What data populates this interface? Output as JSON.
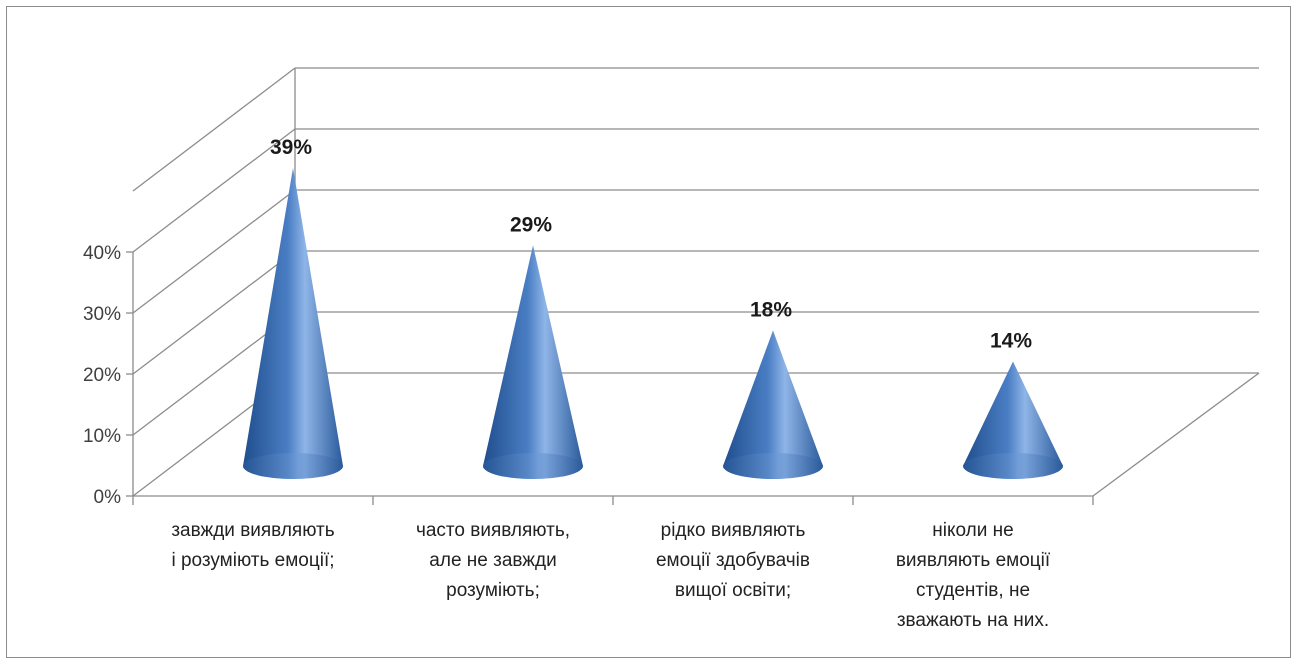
{
  "chart_data": {
    "type": "bar",
    "shape": "3d-cone",
    "title": "",
    "xlabel": "",
    "ylabel": "",
    "categories": [
      [
        "завжди виявляють",
        "і розуміють емоції;"
      ],
      [
        "часто виявляють,",
        "але не завжди",
        "розуміють;"
      ],
      [
        "рідко виявляють",
        "емоції здобувачів",
        "вищої освіти;"
      ],
      [
        "ніколи не",
        "виявляють емоції",
        "студентів, не",
        "зважають на них."
      ]
    ],
    "values": [
      39,
      29,
      18,
      14
    ],
    "value_labels": [
      "39%",
      "29%",
      "18%",
      "14%"
    ],
    "ylim": [
      0,
      40
    ],
    "yticks": [
      "0%",
      "10%",
      "20%",
      "30%",
      "40%"
    ],
    "grid": true,
    "legend": "none",
    "colors": {
      "cone_dark": "#1f4e8c",
      "cone_mid": "#4a7ec4",
      "cone_light": "#8fb5e8",
      "axis": "#8c8c8c",
      "frame": "#8c8c8c"
    }
  }
}
